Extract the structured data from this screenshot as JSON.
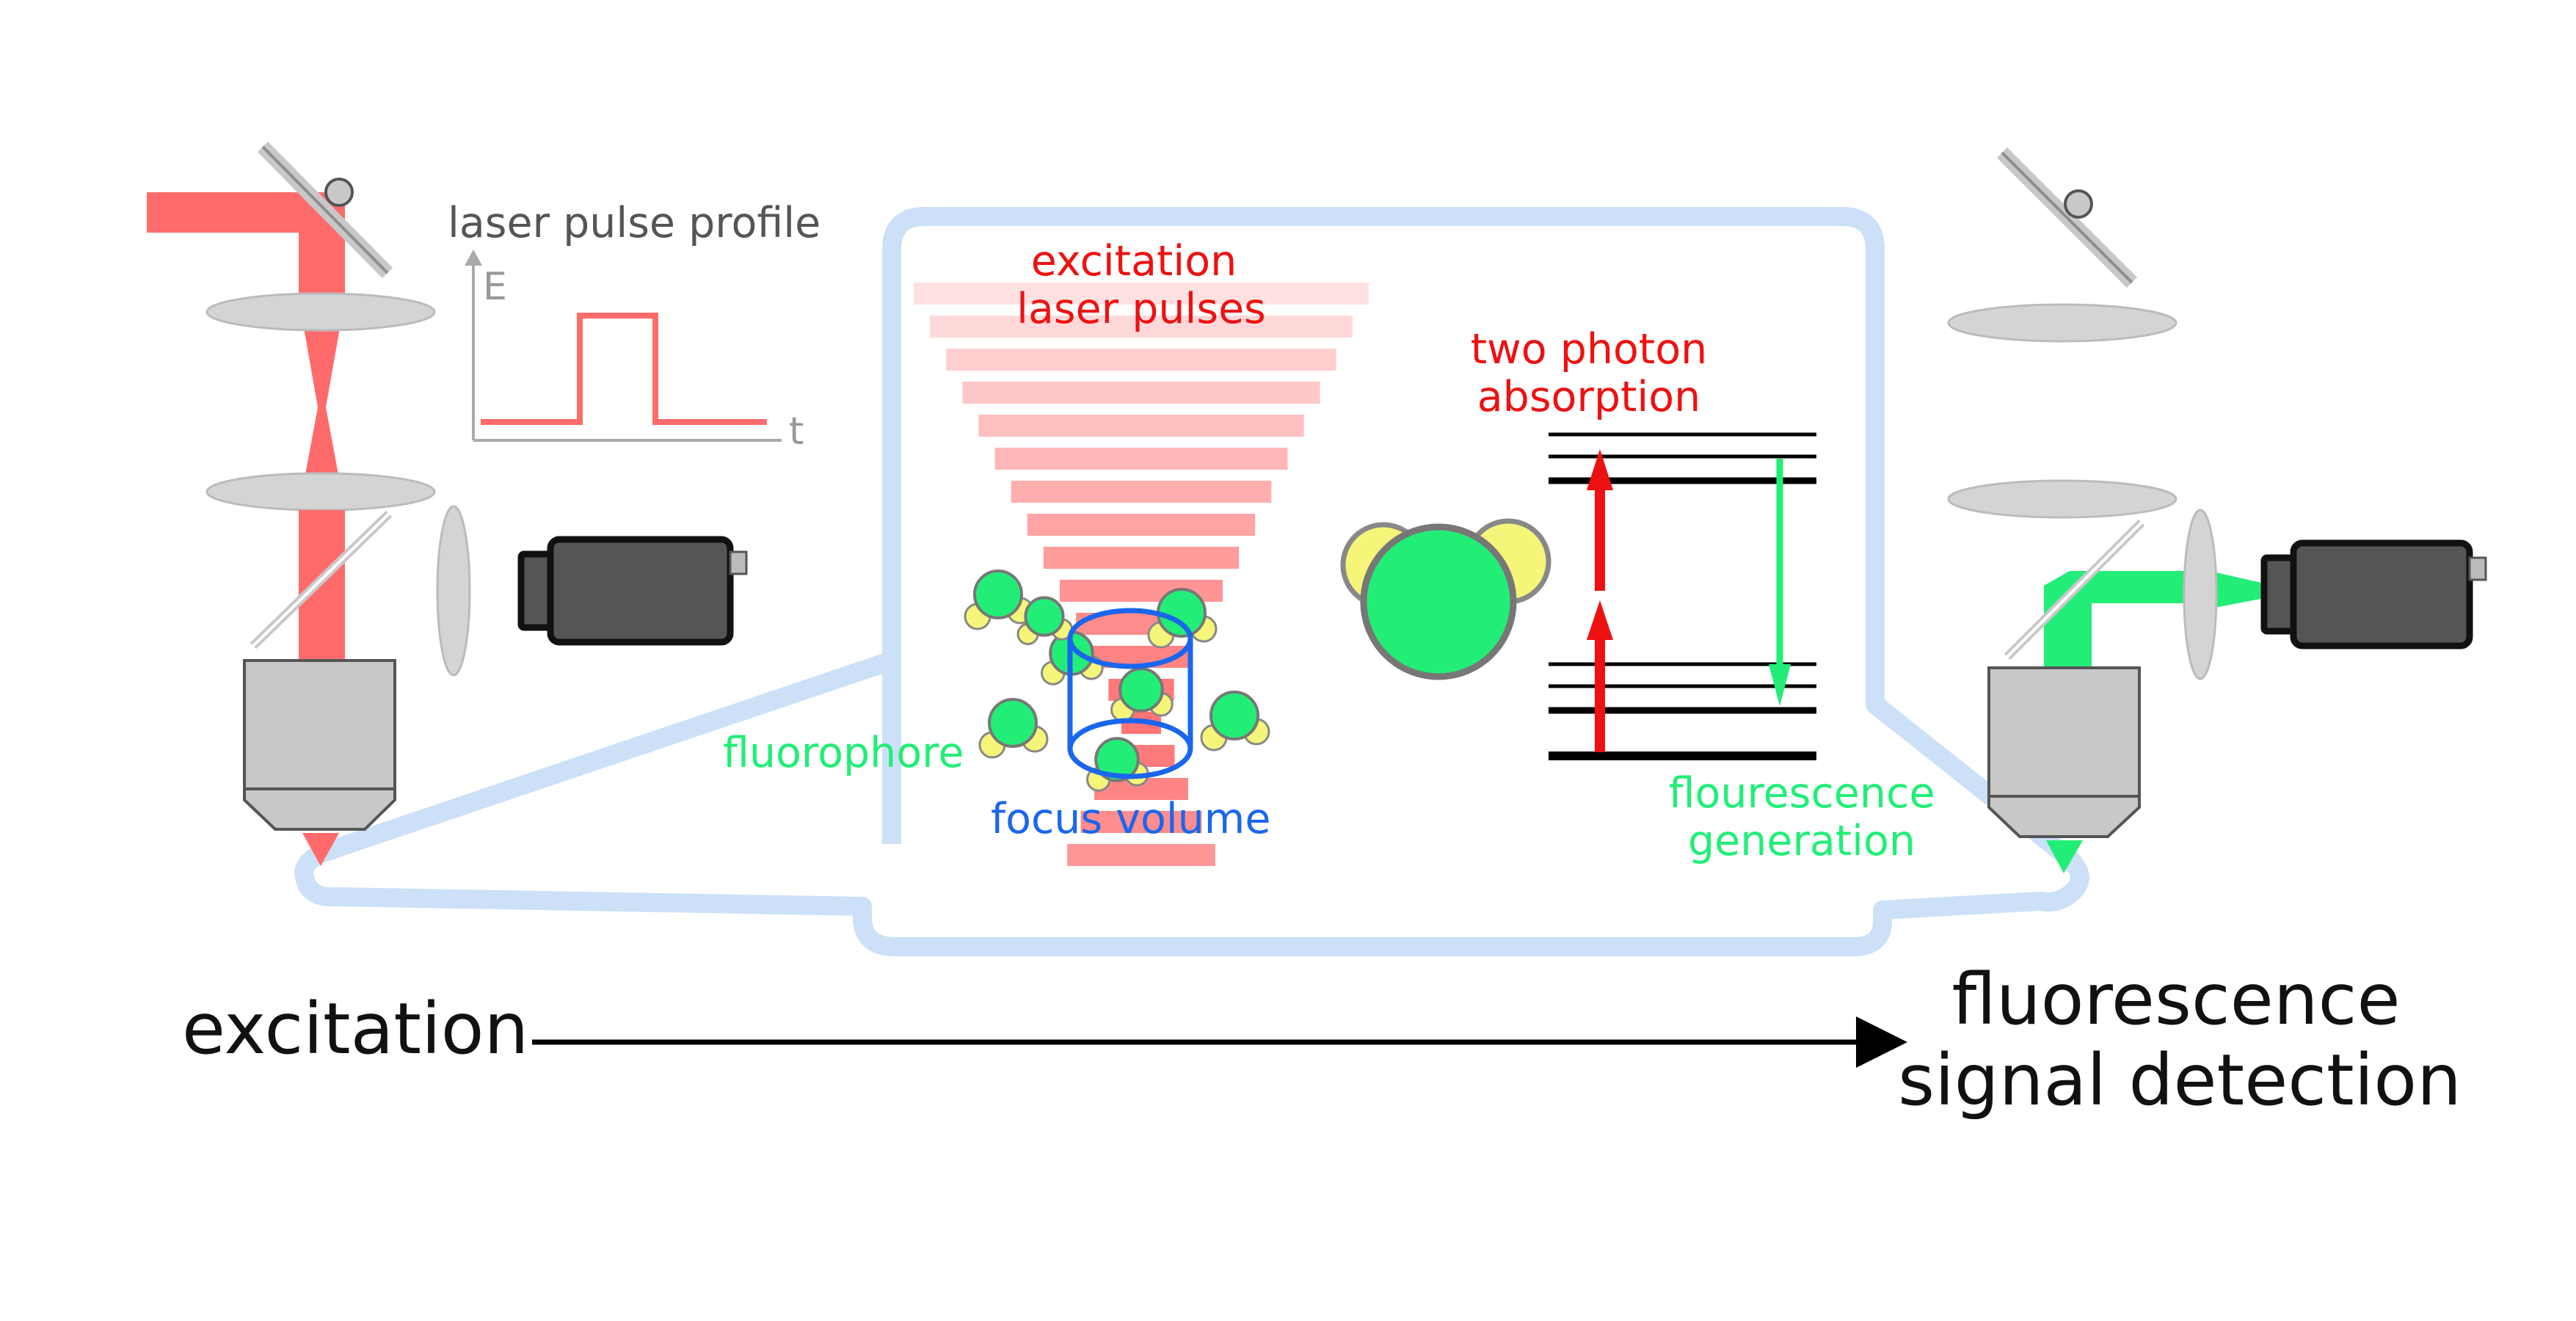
{
  "labels": {
    "pulse_profile_title": "laser pulse profile",
    "axis_energy": "E",
    "axis_time": "t",
    "excitation_pulses_line1": "excitation",
    "excitation_pulses_line2": "laser pulses",
    "two_photon_line1": "two photon",
    "two_photon_line2": "absorption",
    "fluorophore": "fluorophore",
    "focus_volume": "focus volume",
    "fluorescence_gen_line1": "flourescence",
    "fluorescence_gen_line2": "generation",
    "excitation": "excitation",
    "detection_line1": "fluorescence",
    "detection_line2": "signal detection"
  },
  "colors": {
    "laser": "#ff6b6b",
    "laser_text": "#ee1111",
    "fluor": "#22ee77",
    "focus": "#1a66ee",
    "callout": "#cce0f8",
    "lens": "#d4d4d4",
    "camera": "#555555"
  }
}
